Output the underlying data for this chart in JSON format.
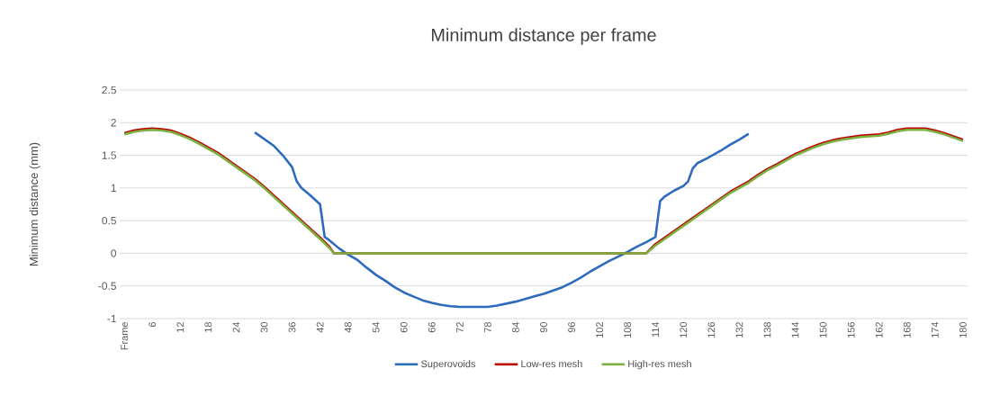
{
  "chart_data": {
    "type": "line",
    "title": "Minimum distance per frame",
    "ylabel": "Minimum distance (mm)",
    "xlim": [
      -1,
      181
    ],
    "xticks": [
      {
        "value": 0,
        "label": "Frame"
      },
      6,
      12,
      18,
      24,
      30,
      36,
      42,
      48,
      54,
      60,
      66,
      72,
      78,
      84,
      90,
      96,
      102,
      108,
      114,
      120,
      126,
      132,
      138,
      144,
      150,
      156,
      162,
      168,
      174,
      180
    ],
    "ylim": [
      -1,
      2.5
    ],
    "yticks": [
      -1,
      -0.5,
      0,
      0.5,
      1,
      1.5,
      2,
      2.5
    ],
    "grid": "y",
    "legend": "bottom",
    "marker": "none",
    "line_style": "solid",
    "series": [
      {
        "name": "Superovoids",
        "color": "#2e6bbd",
        "x": [
          28,
          30,
          32,
          34,
          36,
          37,
          38,
          40,
          42,
          43,
          44,
          46,
          48,
          50,
          52,
          54,
          56,
          58,
          60,
          62,
          64,
          66,
          68,
          70,
          72,
          74,
          76,
          78,
          80,
          82,
          84,
          86,
          88,
          90,
          92,
          94,
          96,
          98,
          100,
          102,
          104,
          106,
          108,
          110,
          112,
          114,
          115,
          116,
          118,
          120,
          121,
          122,
          123,
          125,
          128,
          130,
          132,
          134
        ],
        "values": [
          1.85,
          1.75,
          1.65,
          1.5,
          1.32,
          1.1,
          1.0,
          0.88,
          0.75,
          0.25,
          0.2,
          0.08,
          -0.02,
          -0.1,
          -0.22,
          -0.33,
          -0.42,
          -0.52,
          -0.6,
          -0.66,
          -0.72,
          -0.76,
          -0.79,
          -0.81,
          -0.82,
          -0.82,
          -0.82,
          -0.82,
          -0.8,
          -0.77,
          -0.74,
          -0.7,
          -0.66,
          -0.62,
          -0.57,
          -0.52,
          -0.45,
          -0.37,
          -0.28,
          -0.2,
          -0.12,
          -0.05,
          0.02,
          0.1,
          0.17,
          0.25,
          0.8,
          0.87,
          0.96,
          1.03,
          1.1,
          1.3,
          1.38,
          1.45,
          1.57,
          1.66,
          1.74,
          1.83
        ]
      },
      {
        "name": "Low-res mesh",
        "color": "#c00000",
        "x": [
          0,
          2,
          4,
          6,
          8,
          10,
          12,
          14,
          16,
          18,
          20,
          22,
          24,
          26,
          28,
          30,
          32,
          34,
          36,
          38,
          40,
          42,
          44,
          45,
          60,
          80,
          100,
          111,
          112,
          114,
          116,
          118,
          120,
          122,
          124,
          126,
          128,
          130,
          132,
          134,
          136,
          138,
          140,
          142,
          144,
          146,
          148,
          150,
          152,
          154,
          156,
          158,
          160,
          162,
          164,
          166,
          168,
          170,
          172,
          174,
          176,
          178,
          180
        ],
        "values": [
          1.84,
          1.88,
          1.9,
          1.91,
          1.9,
          1.88,
          1.83,
          1.77,
          1.7,
          1.62,
          1.54,
          1.44,
          1.34,
          1.24,
          1.14,
          1.02,
          0.89,
          0.76,
          0.63,
          0.5,
          0.37,
          0.24,
          0.1,
          0,
          0,
          0,
          0,
          0,
          0,
          0.14,
          0.24,
          0.34,
          0.44,
          0.54,
          0.64,
          0.74,
          0.84,
          0.94,
          1.02,
          1.1,
          1.2,
          1.29,
          1.36,
          1.44,
          1.52,
          1.58,
          1.64,
          1.69,
          1.73,
          1.76,
          1.78,
          1.8,
          1.81,
          1.82,
          1.85,
          1.89,
          1.91,
          1.91,
          1.91,
          1.88,
          1.84,
          1.79,
          1.74
        ]
      },
      {
        "name": "High-res mesh",
        "color": "#7cb041",
        "x": [
          0,
          2,
          4,
          6,
          8,
          10,
          12,
          14,
          16,
          18,
          20,
          22,
          24,
          26,
          28,
          30,
          32,
          34,
          36,
          38,
          40,
          42,
          44,
          45,
          60,
          80,
          100,
          111,
          112,
          114,
          116,
          118,
          120,
          122,
          124,
          126,
          128,
          130,
          132,
          134,
          136,
          138,
          140,
          142,
          144,
          146,
          148,
          150,
          152,
          154,
          156,
          158,
          160,
          162,
          164,
          166,
          168,
          170,
          172,
          174,
          176,
          178,
          180
        ],
        "values": [
          1.82,
          1.86,
          1.88,
          1.89,
          1.88,
          1.86,
          1.81,
          1.75,
          1.68,
          1.6,
          1.52,
          1.42,
          1.32,
          1.22,
          1.12,
          1.0,
          0.87,
          0.74,
          0.61,
          0.48,
          0.35,
          0.22,
          0.08,
          0,
          0,
          0,
          0,
          0,
          0,
          0.12,
          0.22,
          0.32,
          0.42,
          0.52,
          0.62,
          0.72,
          0.82,
          0.92,
          1.0,
          1.08,
          1.18,
          1.27,
          1.34,
          1.42,
          1.5,
          1.56,
          1.62,
          1.67,
          1.71,
          1.74,
          1.76,
          1.78,
          1.79,
          1.8,
          1.83,
          1.87,
          1.89,
          1.89,
          1.89,
          1.86,
          1.82,
          1.77,
          1.72
        ]
      }
    ]
  }
}
